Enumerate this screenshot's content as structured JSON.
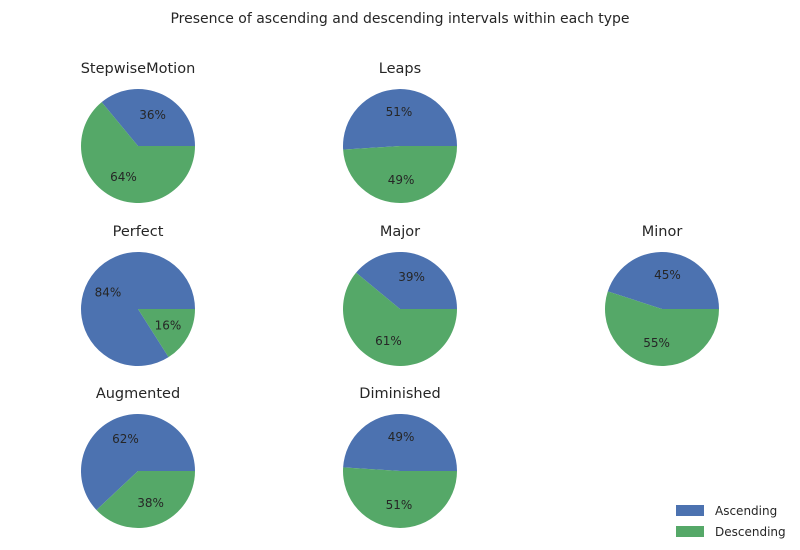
{
  "chart_data": {
    "type": "pie",
    "title": "Presence of ascending and descending intervals within each type",
    "series_names": [
      "Ascending",
      "Descending"
    ],
    "colors": {
      "Ascending": "#4c72b0",
      "Descending": "#55a868"
    },
    "legend_placement": "bottom-right",
    "subplots": [
      {
        "title": "StepwiseMotion",
        "values": [
          36,
          64
        ],
        "labels": [
          "36%",
          "64%"
        ]
      },
      {
        "title": "Leaps",
        "values": [
          51,
          49
        ],
        "labels": [
          "51%",
          "49%"
        ]
      },
      {
        "title": "Perfect",
        "values": [
          84,
          16
        ],
        "labels": [
          "84%",
          "16%"
        ]
      },
      {
        "title": "Major",
        "values": [
          39,
          61
        ],
        "labels": [
          "39%",
          "61%"
        ]
      },
      {
        "title": "Minor",
        "values": [
          45,
          55
        ],
        "labels": [
          "45%",
          "55%"
        ]
      },
      {
        "title": "Augmented",
        "values": [
          62,
          38
        ],
        "labels": [
          "62%",
          "38%"
        ]
      },
      {
        "title": "Diminished",
        "values": [
          49,
          51
        ],
        "labels": [
          "49%",
          "51%"
        ]
      }
    ]
  }
}
